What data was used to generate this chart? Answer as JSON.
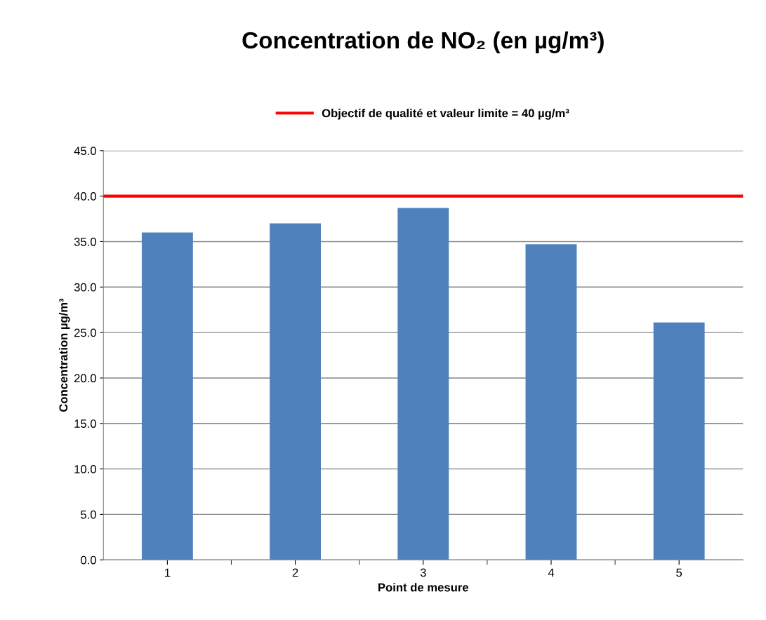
{
  "chart_data": {
    "type": "bar",
    "title": "Concentration de NO₂ (en µg/m³)",
    "xlabel": "Point de mesure",
    "ylabel": "Concentration µg/m³",
    "categories": [
      "1",
      "2",
      "3",
      "4",
      "5"
    ],
    "series": [
      {
        "color": "#4f81bd",
        "values": [
          36.0,
          37.0,
          38.7,
          34.7,
          26.1
        ]
      }
    ],
    "ref_lines": [
      {
        "axis": "y",
        "value": 40,
        "label": "Objectif de qualité et valeur limite = 40 µg/m³",
        "color": "#ff0000",
        "line_style": "solid"
      }
    ],
    "ylim": [
      0,
      45
    ],
    "yticks": [
      {
        "value": 0,
        "label": "0.0"
      },
      {
        "value": 5,
        "label": "5.0"
      },
      {
        "value": 10,
        "label": "10.0"
      },
      {
        "value": 15,
        "label": "15.0"
      },
      {
        "value": 20,
        "label": "20.0"
      },
      {
        "value": 25,
        "label": "25.0"
      },
      {
        "value": 30,
        "label": "30.0"
      },
      {
        "value": 35,
        "label": "35.0"
      },
      {
        "value": 40,
        "label": "40.0"
      },
      {
        "value": 45,
        "label": "45.0"
      }
    ],
    "grid": "y",
    "legend": "top"
  }
}
